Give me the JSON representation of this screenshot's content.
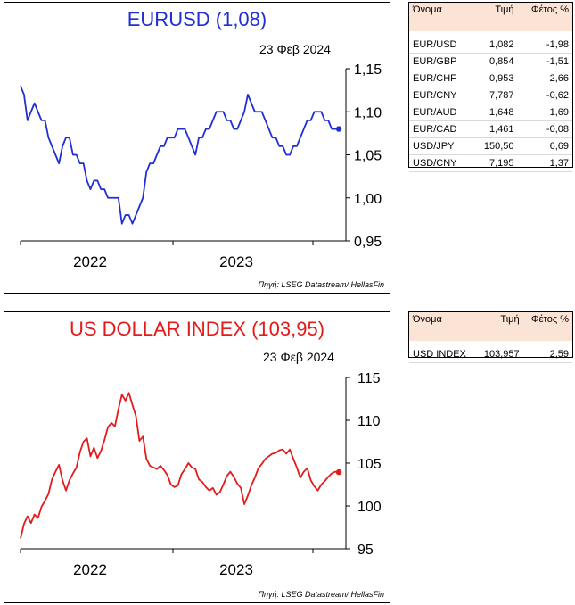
{
  "colors": {
    "eurusd_line": "#1f2fd4",
    "dxy_line": "#e31b1b",
    "table_header_bg": "#fbe4d5"
  },
  "eurusd_panel": {
    "title": "EURUSD (1,08)",
    "date": "23 Φεβ 2024",
    "source": "Πηγή: LSEG Datastream/ HellasFin",
    "table": {
      "headers": [
        "Όνομα",
        "Τιμή",
        "Φέτος %"
      ],
      "rows": [
        [
          "EUR/USD",
          "1,082",
          "-1,98"
        ],
        [
          "EUR/GBP",
          "0,854",
          "-1,51"
        ],
        [
          "EUR/CHF",
          "0,953",
          "2,66"
        ],
        [
          "EUR/CNY",
          "7,787",
          "-0,62"
        ],
        [
          "EUR/AUD",
          "1,648",
          "1,69"
        ],
        [
          "EUR/CAD",
          "1,461",
          "-0,08"
        ],
        [
          "USD/JPY",
          "150,50",
          "6,69"
        ],
        [
          "USD/CNY",
          "7,195",
          "1,37"
        ]
      ]
    }
  },
  "dxy_panel": {
    "title": "US DOLLAR INDEX (103,95)",
    "date": "23 Φεβ 2024",
    "source": "Πηγή: LSEG Datastream/ HellasFin",
    "table": {
      "headers": [
        "Όνομα",
        "Τιμή",
        "Φέτος %"
      ],
      "rows": [
        [
          "USD INDEX",
          "103,957",
          "2,59"
        ]
      ]
    }
  },
  "chart_data": [
    {
      "type": "line",
      "title": "EURUSD (1,08)",
      "xlabel": "",
      "ylabel": "",
      "x_tick_labels": [
        "2022",
        "2023"
      ],
      "y_tick_labels": [
        "1,15",
        "1,10",
        "1,05",
        "1,00",
        "0,95"
      ],
      "ylim": [
        0.95,
        1.15
      ],
      "grid": false,
      "end_marker": true,
      "series": [
        {
          "values": [
            1.13,
            1.12,
            1.09,
            1.1,
            1.11,
            1.1,
            1.09,
            1.09,
            1.07,
            1.06,
            1.05,
            1.04,
            1.06,
            1.07,
            1.07,
            1.05,
            1.05,
            1.04,
            1.04,
            1.02,
            1.01,
            1.02,
            1.02,
            1.01,
            1.01,
            1.0,
            1.0,
            1.0,
            1.0,
            0.97,
            0.98,
            0.98,
            0.97,
            0.98,
            0.99,
            1.0,
            1.03,
            1.04,
            1.04,
            1.05,
            1.06,
            1.06,
            1.07,
            1.07,
            1.07,
            1.08,
            1.08,
            1.08,
            1.07,
            1.06,
            1.05,
            1.07,
            1.07,
            1.08,
            1.08,
            1.09,
            1.1,
            1.1,
            1.1,
            1.09,
            1.09,
            1.08,
            1.08,
            1.09,
            1.1,
            1.12,
            1.11,
            1.1,
            1.1,
            1.1,
            1.09,
            1.08,
            1.07,
            1.07,
            1.06,
            1.06,
            1.05,
            1.05,
            1.06,
            1.06,
            1.07,
            1.08,
            1.09,
            1.09,
            1.1,
            1.1,
            1.1,
            1.09,
            1.09,
            1.08,
            1.08,
            1.08
          ]
        }
      ]
    },
    {
      "type": "line",
      "title": "US DOLLAR INDEX (103,95)",
      "xlabel": "",
      "ylabel": "",
      "x_tick_labels": [
        "2022",
        "2023"
      ],
      "y_tick_labels": [
        "115",
        "110",
        "105",
        "100",
        "95"
      ],
      "ylim": [
        95,
        115
      ],
      "grid": false,
      "end_marker": true,
      "series": [
        {
          "values": [
            96.2,
            97.9,
            98.8,
            98.0,
            99.0,
            98.6,
            99.9,
            100.6,
            101.4,
            103.1,
            104.0,
            104.8,
            103.0,
            101.8,
            103.0,
            103.8,
            104.5,
            106.3,
            107.5,
            107.9,
            105.8,
            106.8,
            105.6,
            106.4,
            107.7,
            109.2,
            109.7,
            109.3,
            111.3,
            113.0,
            112.3,
            113.2,
            111.8,
            110.5,
            107.6,
            108.1,
            105.5,
            104.7,
            104.5,
            104.3,
            104.7,
            104.2,
            103.6,
            102.5,
            102.2,
            102.4,
            103.7,
            104.3,
            105.0,
            104.5,
            104.3,
            103.1,
            102.8,
            102.2,
            101.8,
            102.1,
            101.3,
            101.6,
            102.5,
            103.5,
            104.0,
            103.4,
            102.6,
            102.1,
            100.2,
            101.2,
            102.4,
            103.3,
            104.4,
            104.9,
            105.5,
            105.8,
            106.1,
            106.2,
            106.5,
            106.6,
            106.1,
            106.6,
            105.5,
            104.5,
            103.3,
            104.0,
            104.4,
            103.0,
            102.3,
            101.8,
            102.5,
            102.9,
            103.4,
            103.8,
            104.0,
            103.95
          ]
        }
      ]
    }
  ]
}
